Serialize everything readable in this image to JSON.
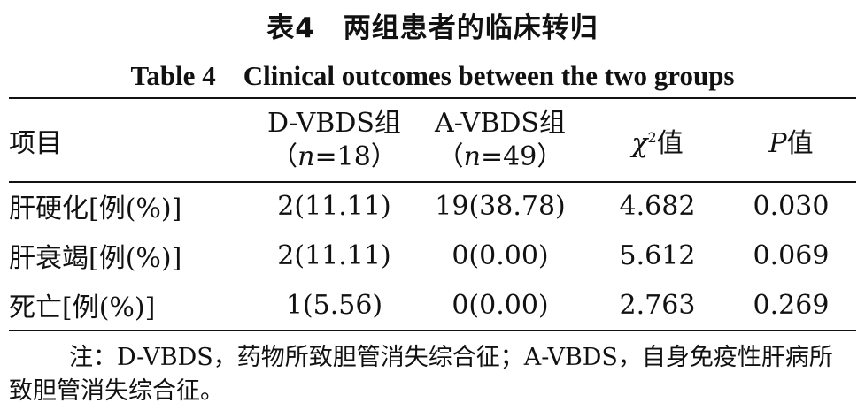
{
  "title_cn": "表4　两组患者的临床转归",
  "title_en": "Table 4　Clinical outcomes between the two groups",
  "header": {
    "item": "项目",
    "group_d_name": "D-VBDS组",
    "group_d_n_prefix": "（",
    "group_d_n_var": "n",
    "group_d_n_value": "=18）",
    "group_a_name": "A-VBDS组",
    "group_a_n_prefix": "（",
    "group_a_n_var": "n",
    "group_a_n_value": "=49）",
    "chi_symbol": "χ",
    "chi_sup": "2",
    "chi_suffix": "值",
    "p_symbol": "P",
    "p_suffix": "值"
  },
  "rows": [
    {
      "item": "肝硬化[例(%)]",
      "d": "2(11.11)",
      "a": "19(38.78)",
      "chi2": "4.682",
      "p": "0.030"
    },
    {
      "item": "肝衰竭[例(%)]",
      "d": "2(11.11)",
      "a": "0(0.00)",
      "chi2": "5.612",
      "p": "0.069"
    },
    {
      "item": "死亡[例(%)]",
      "d": "1(5.56)",
      "a": "0(0.00)",
      "chi2": "2.763",
      "p": "0.269"
    }
  ],
  "note": "注：D-VBDS，药物所致胆管消失综合征；A-VBDS，自身免疫性肝病所致胆管消失综合征。"
}
